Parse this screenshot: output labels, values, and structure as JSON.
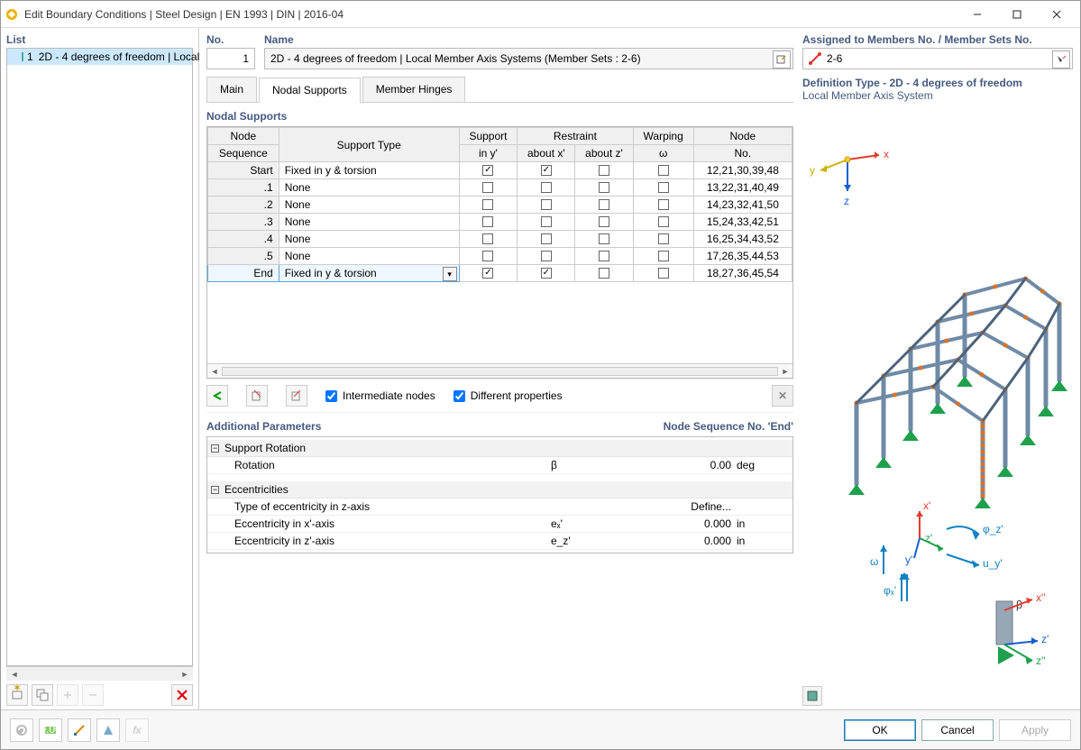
{
  "window": {
    "title": "Edit Boundary Conditions | Steel Design | EN 1993 | DIN | 2016-04"
  },
  "left": {
    "header": "List",
    "item_index": "1",
    "item_label": "2D - 4 degrees of freedom | Local"
  },
  "top": {
    "no_label": "No.",
    "no_value": "1",
    "name_label": "Name",
    "name_value": "2D - 4 degrees of freedom | Local Member Axis Systems (Member Sets : 2-6)",
    "assigned_label": "Assigned to Members No. / Member Sets No.",
    "assigned_value": "2-6"
  },
  "tabs": {
    "main": "Main",
    "nodal": "Nodal Supports",
    "hinges": "Member Hinges"
  },
  "ns": {
    "section": "Nodal Supports",
    "hdr_nodeseq1": "Node",
    "hdr_nodeseq2": "Sequence",
    "hdr_support_type": "Support Type",
    "hdr_support1": "Support",
    "hdr_support2": "in y'",
    "hdr_restraint": "Restraint",
    "hdr_about_x": "about x'",
    "hdr_about_z": "about z'",
    "hdr_warp1": "Warping",
    "hdr_warp2": "ω",
    "hdr_node1": "Node",
    "hdr_node2": "No.",
    "rows": [
      {
        "seq": "Start",
        "type": "Fixed in y & torsion",
        "sy": true,
        "rx": true,
        "rz": false,
        "w": false,
        "nodes": "12,21,30,39,48"
      },
      {
        "seq": ".1",
        "type": "None",
        "sy": false,
        "rx": false,
        "rz": false,
        "w": false,
        "nodes": "13,22,31,40,49"
      },
      {
        "seq": ".2",
        "type": "None",
        "sy": false,
        "rx": false,
        "rz": false,
        "w": false,
        "nodes": "14,23,32,41,50"
      },
      {
        "seq": ".3",
        "type": "None",
        "sy": false,
        "rx": false,
        "rz": false,
        "w": false,
        "nodes": "15,24,33,42,51"
      },
      {
        "seq": ".4",
        "type": "None",
        "sy": false,
        "rx": false,
        "rz": false,
        "w": false,
        "nodes": "16,25,34,43,52"
      },
      {
        "seq": ".5",
        "type": "None",
        "sy": false,
        "rx": false,
        "rz": false,
        "w": false,
        "nodes": "17,26,35,44,53"
      },
      {
        "seq": "End",
        "type": "Fixed in y & torsion",
        "sy": true,
        "rx": true,
        "rz": false,
        "w": false,
        "nodes": "18,27,36,45,54"
      }
    ]
  },
  "opts": {
    "intermediate": "Intermediate nodes",
    "different": "Different properties"
  },
  "ap": {
    "header": "Additional Parameters",
    "context": "Node Sequence No. 'End'",
    "g1": "Support Rotation",
    "g1_row_label": "Rotation",
    "g1_row_sym": "β",
    "g1_row_val": "0.00",
    "g1_row_unit": "deg",
    "g2": "Eccentricities",
    "g2_r1_label": "Type of eccentricity in z-axis",
    "g2_r1_val": "Define...",
    "g2_r2_label": "Eccentricity in x'-axis",
    "g2_r2_sym": "eₓ'",
    "g2_r2_val": "0.000",
    "g2_r2_unit": "in",
    "g2_r3_label": "Eccentricity in z'-axis",
    "g2_r3_sym": "e_z'",
    "g2_r3_val": "0.000",
    "g2_r3_unit": "in"
  },
  "preview": {
    "title": "Definition Type - 2D - 4 degrees of freedom",
    "subtitle": "Local Member Axis System"
  },
  "buttons": {
    "ok": "OK",
    "cancel": "Cancel",
    "apply": "Apply"
  },
  "colors": {
    "steel": "#6f8aa5",
    "steel_dark": "#4b637a",
    "support": "#1fa04c",
    "node": "#e07020",
    "axis_x": "#e23b2e",
    "axis_y": "#c9b300",
    "axis_z": "#1560d0",
    "text_axis": "#1082c4"
  },
  "axes": {
    "x": "x",
    "y": "y",
    "z": "z",
    "xprime": "x'",
    "yprime": "y'",
    "zprime": "z'",
    "phi_x": "φₓ'",
    "phi_z": "φ_z'",
    "u_y": "u_y'",
    "omega": "ω",
    "beta": "β",
    "xdbl": "x''",
    "zdbl": "z'",
    "zdbl2": "z''"
  }
}
